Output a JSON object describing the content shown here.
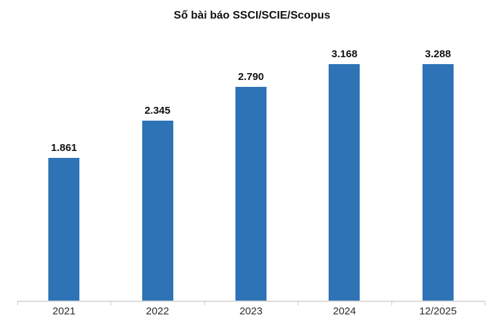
{
  "chart_data": {
    "type": "bar",
    "title": "Số bài báo SSCI/SCIE/Scopus",
    "categories": [
      "2021",
      "2022",
      "2023",
      "2024",
      "12/2025"
    ],
    "values": [
      1861,
      2345,
      2790,
      3168,
      3288
    ],
    "display_values": [
      "1.861",
      "2.345",
      "2.790",
      "3.168",
      "3.288"
    ],
    "xlabel": "",
    "ylabel": "",
    "ylim": [
      0,
      3288
    ],
    "grid": false,
    "legend": false,
    "data_labels": true,
    "colors": {
      "bar": "#2E73B5",
      "axis_line": "#DCDCDC",
      "tick": "#C9C9C9",
      "title_text": "#111111",
      "value_label_text": "#111111",
      "axis_label_text": "#2b2b2b",
      "background": "#ffffff"
    }
  }
}
